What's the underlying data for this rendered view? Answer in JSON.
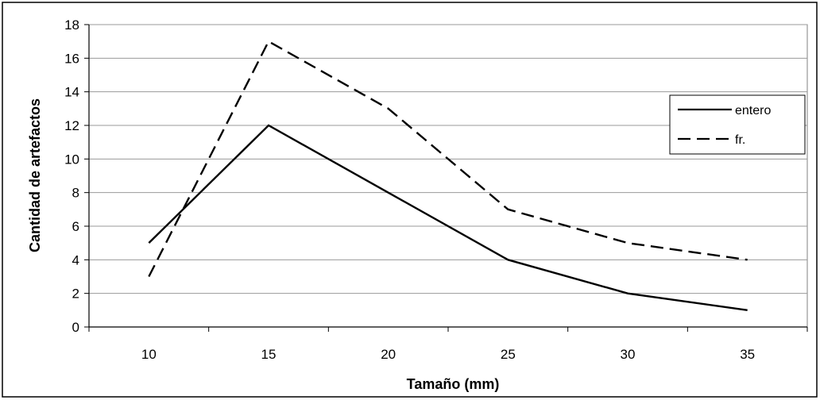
{
  "chart_data": {
    "type": "line",
    "title": "",
    "xlabel": "Tamaño (mm)",
    "ylabel": "Cantidad de artefactos",
    "categories": [
      "10",
      "15",
      "20",
      "25",
      "30",
      "35"
    ],
    "ylim": [
      0,
      18
    ],
    "yticks": [
      "0",
      "2",
      "4",
      "6",
      "8",
      "10",
      "12",
      "14",
      "16",
      "18"
    ],
    "grid": true,
    "legend_position": "top-right",
    "series": [
      {
        "name": "entero",
        "values": [
          5,
          12,
          8,
          4,
          2,
          1
        ],
        "line_style": "solid",
        "color": "#000000"
      },
      {
        "name": "fr.",
        "values": [
          3,
          17,
          13,
          7,
          5,
          4
        ],
        "line_style": "dashed",
        "color": "#000000"
      }
    ]
  }
}
